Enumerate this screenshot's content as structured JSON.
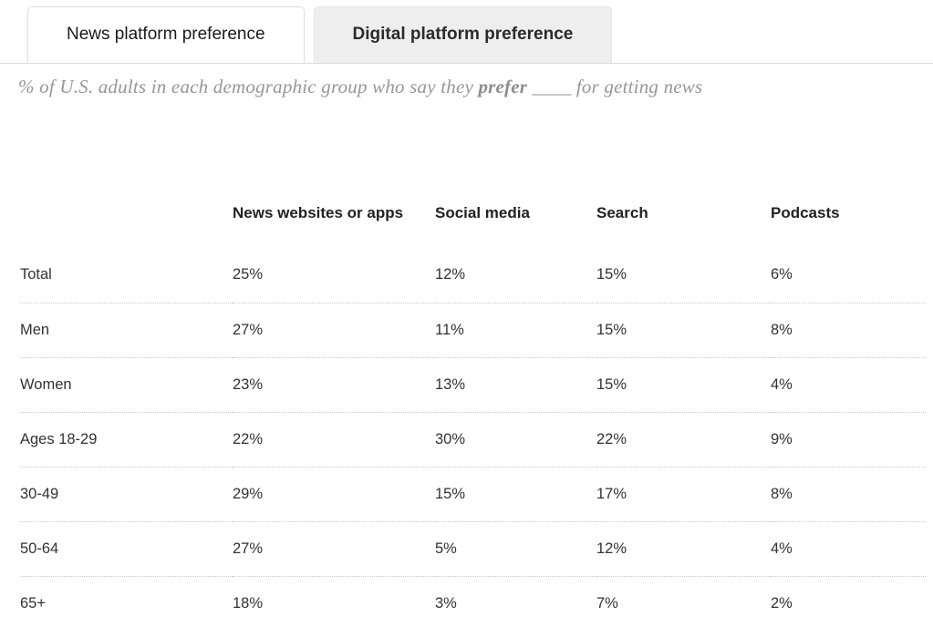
{
  "tabs": [
    {
      "label": "News platform preference",
      "active": false
    },
    {
      "label": "Digital platform preference",
      "active": true
    }
  ],
  "subtitle": {
    "part1": "% of U.S. adults in each demographic group who say they ",
    "bold": "prefer",
    "part2": " ____ for getting news"
  },
  "chart_data": {
    "type": "table",
    "columns": [
      "News websites or apps",
      "Social media",
      "Search",
      "Podcasts"
    ],
    "rows": [
      {
        "label": "Total",
        "values": [
          "25%",
          "12%",
          "15%",
          "6%"
        ]
      },
      {
        "label": "Men",
        "values": [
          "27%",
          "11%",
          "15%",
          "8%"
        ]
      },
      {
        "label": "Women",
        "values": [
          "23%",
          "13%",
          "15%",
          "4%"
        ]
      },
      {
        "label": "Ages 18-29",
        "values": [
          "22%",
          "30%",
          "22%",
          "9%"
        ]
      },
      {
        "label": "30-49",
        "values": [
          "29%",
          "15%",
          "17%",
          "8%"
        ]
      },
      {
        "label": "50-64",
        "values": [
          "27%",
          "5%",
          "12%",
          "4%"
        ]
      },
      {
        "label": "65+",
        "values": [
          "18%",
          "3%",
          "7%",
          "2%"
        ]
      }
    ]
  },
  "colors": {
    "tab_active_bg": "#eeeeee",
    "tab_border": "#dddddd",
    "row_divider": "#c9c9c9",
    "subtitle_text": "#979797",
    "body_text": "#333333"
  }
}
